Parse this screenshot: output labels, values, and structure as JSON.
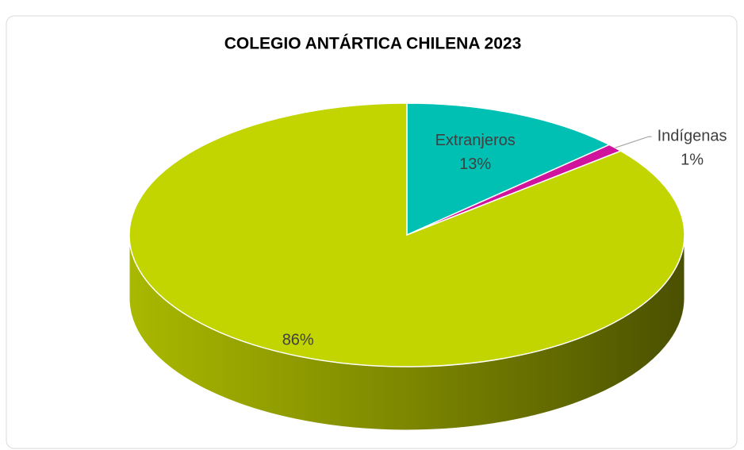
{
  "chart_data": {
    "type": "pie",
    "title": "COLEGIO ANTÁRTICA CHILENA 2023",
    "categories": [
      "Extranjeros",
      "Indígenas",
      null
    ],
    "values": [
      13,
      1,
      86
    ],
    "value_labels": [
      "13%",
      "1%",
      "86%"
    ],
    "colors": [
      "#00bfb3",
      "#d0139c",
      "#c2d500"
    ]
  }
}
